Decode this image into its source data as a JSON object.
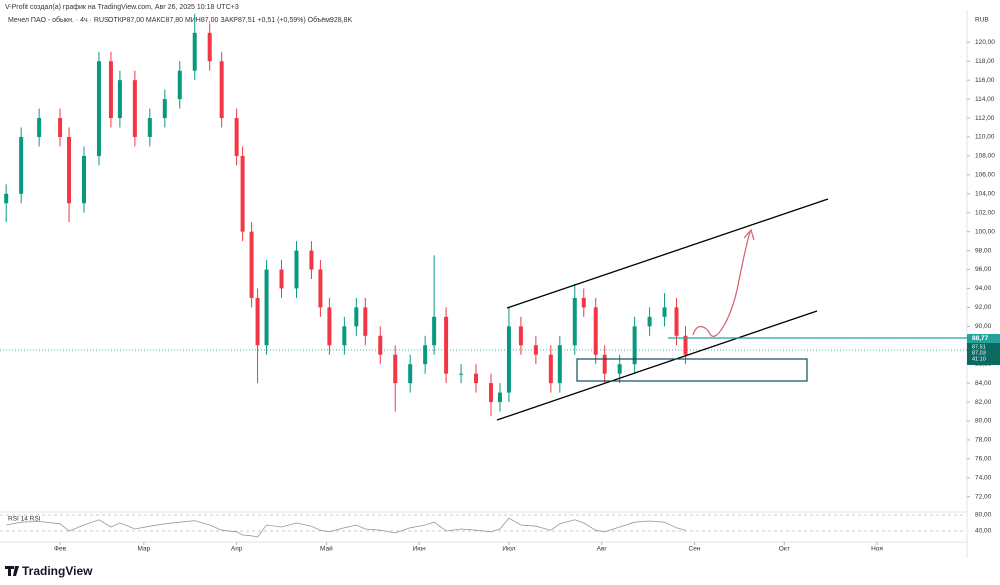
{
  "chart_data": {
    "type": "candlestick",
    "credit": "V-Profit создал(а) график на TradingView.com, Авг 26, 2025 10:18 UTC+3",
    "title": "Мечел ПАО - обыкн. · 4ч · RUS",
    "ohlc_text": "ОТКР87,00 МАКС87,80 МИН87,00 ЗАКР87,51 +0,51 (+0,59%) Объём928,8K",
    "currency": "RUB",
    "x": [
      14,
      19,
      25,
      32,
      35,
      40,
      45,
      49,
      52,
      57,
      62,
      67,
      72,
      77,
      82,
      86,
      91,
      93,
      96,
      98,
      101,
      106,
      111,
      116,
      119,
      122,
      127,
      131,
      134,
      139,
      144,
      149,
      154,
      157,
      161,
      166,
      171,
      176,
      179,
      182,
      186,
      191,
      196,
      199,
      204,
      207,
      211,
      214,
      219,
      224,
      229,
      234,
      238,
      241
    ],
    "open": [
      103,
      104,
      110,
      112,
      110,
      103,
      108,
      118,
      112,
      116,
      110,
      112,
      114,
      117,
      121,
      118,
      112,
      108,
      100,
      93,
      88,
      96,
      94,
      98,
      96,
      92,
      88,
      90,
      92,
      89,
      87,
      84,
      86,
      88,
      91,
      85,
      85,
      84,
      82,
      83,
      90,
      88,
      87,
      84,
      88,
      93,
      92,
      87,
      85,
      86,
      90,
      91,
      92,
      89
    ],
    "high": [
      105,
      111,
      113,
      113,
      111,
      109,
      119,
      119,
      117,
      117,
      113,
      115,
      118,
      123,
      122,
      119,
      113,
      109,
      101,
      94,
      97,
      97,
      99,
      99,
      97,
      93,
      91,
      93,
      93,
      90,
      88,
      87,
      89,
      97.5,
      92,
      86,
      86,
      85,
      84,
      92,
      91,
      89,
      88,
      89,
      94.5,
      94,
      93,
      88,
      87,
      91,
      92,
      93.5,
      93,
      90
    ],
    "low": [
      101,
      103,
      109,
      109,
      101,
      102,
      107,
      111,
      111,
      109,
      109,
      111,
      113,
      116,
      117,
      111,
      107,
      99,
      92,
      84,
      87,
      93,
      93,
      95,
      91,
      87,
      87,
      89,
      88,
      86,
      81,
      83,
      85,
      87,
      84,
      84,
      83,
      80.5,
      81,
      82,
      87,
      86,
      83,
      83,
      87,
      91,
      86,
      84,
      84,
      85,
      89,
      90,
      88,
      86
    ],
    "close": [
      104,
      110,
      112,
      110,
      103,
      108,
      118,
      112,
      116,
      110,
      112,
      114,
      117,
      121,
      118,
      112,
      108,
      100,
      93,
      88,
      96,
      94,
      98,
      96,
      92,
      88,
      90,
      92,
      89,
      87,
      84,
      86,
      88,
      91,
      85,
      85,
      84,
      82,
      83,
      90,
      88,
      87,
      84,
      88,
      93,
      92,
      87,
      85,
      86,
      90,
      91,
      92,
      89,
      87
    ],
    "up_color": "#089981",
    "down_color": "#f23645",
    "xlim": [
      13.6,
      334.4
    ],
    "xticks": [
      {
        "value": 32,
        "label": "Фев"
      },
      {
        "value": 60,
        "label": "Мар"
      },
      {
        "value": 91,
        "label": "Апр"
      },
      {
        "value": 121,
        "label": "Май"
      },
      {
        "value": 152,
        "label": "Июн"
      },
      {
        "value": 182,
        "label": "Июл"
      },
      {
        "value": 213,
        "label": "Авг"
      },
      {
        "value": 244,
        "label": "Сен"
      },
      {
        "value": 274,
        "label": "Окт"
      },
      {
        "value": 305,
        "label": "Ноя"
      }
    ],
    "ylim": [
      70.6,
      123.2
    ],
    "yticks": [
      {
        "value": 72,
        "label": "72,00"
      },
      {
        "value": 74,
        "label": "74,00"
      },
      {
        "value": 76,
        "label": "76,00"
      },
      {
        "value": 78,
        "label": "78,00"
      },
      {
        "value": 80,
        "label": "80,00"
      },
      {
        "value": 82,
        "label": "82,00"
      },
      {
        "value": 84,
        "label": "84,00"
      },
      {
        "value": 86,
        "label": "86,00"
      },
      {
        "value": 88,
        "label": "88,00"
      },
      {
        "value": 90,
        "label": "90,00"
      },
      {
        "value": 92,
        "label": "92,00"
      },
      {
        "value": 94,
        "label": "94,00"
      },
      {
        "value": 96,
        "label": "96,00"
      },
      {
        "value": 98,
        "label": "98,00"
      },
      {
        "value": 100,
        "label": "100,00"
      },
      {
        "value": 102,
        "label": "102,00"
      },
      {
        "value": 104,
        "label": "104,00"
      },
      {
        "value": 106,
        "label": "106,00"
      },
      {
        "value": 108,
        "label": "108,00"
      },
      {
        "value": 110,
        "label": "110,00"
      },
      {
        "value": 112,
        "label": "112,00"
      },
      {
        "value": 114,
        "label": "114,00"
      },
      {
        "value": 116,
        "label": "116,00"
      },
      {
        "value": 118,
        "label": "118,00"
      },
      {
        "value": 120,
        "label": "120,00"
      }
    ],
    "price_labels": [
      "88,77",
      "87,51",
      "87,03",
      "41:10"
    ],
    "rsi": {
      "label": "RSI 14 RSI",
      "color": "#9598a1",
      "values": [
        55,
        62,
        64,
        58,
        40,
        55,
        68,
        50,
        60,
        45,
        52,
        58,
        62,
        66,
        55,
        42,
        38,
        30,
        28,
        25,
        55,
        50,
        60,
        52,
        42,
        38,
        48,
        55,
        45,
        42,
        35,
        48,
        55,
        62,
        40,
        45,
        42,
        38,
        45,
        72,
        55,
        52,
        42,
        58,
        68,
        60,
        42,
        38,
        50,
        62,
        65,
        62,
        48,
        42
      ],
      "ylim": [
        12.5,
        87.5
      ],
      "yticks": [
        {
          "value": 80,
          "label": "80,00"
        },
        {
          "value": 40,
          "label": "40,00"
        }
      ]
    },
    "brand": "TradingView"
  }
}
